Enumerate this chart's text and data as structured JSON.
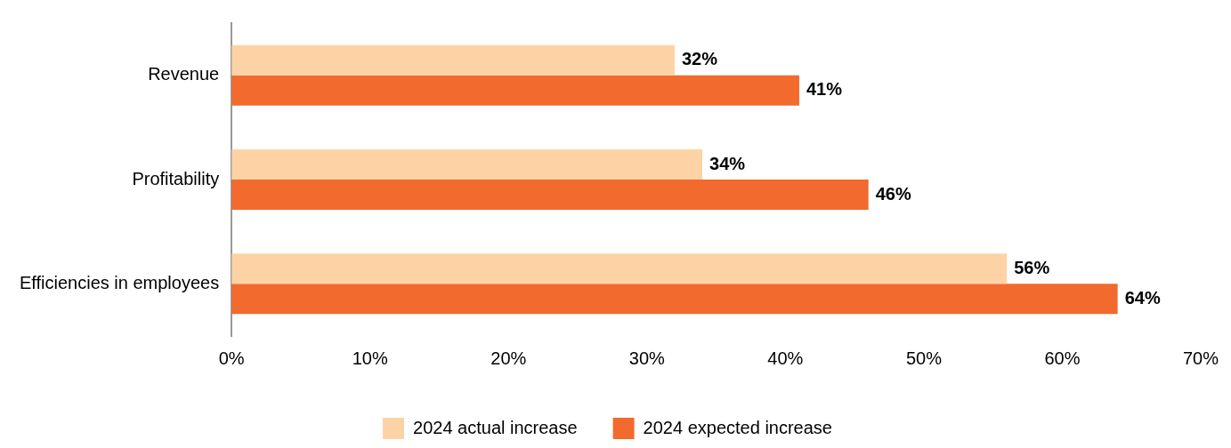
{
  "chart_data": {
    "type": "bar",
    "orientation": "horizontal",
    "categories": [
      "Revenue",
      "Profitability",
      "Efficiencies in employees"
    ],
    "series": [
      {
        "name": "2024 actual increase",
        "color": "#fdd3a5",
        "values": [
          32,
          34,
          56
        ],
        "value_labels": [
          "32%",
          "34%",
          "56%"
        ]
      },
      {
        "name": "2024 expected increase",
        "color": "#f26a2d",
        "values": [
          41,
          46,
          64
        ],
        "value_labels": [
          "41%",
          "46%",
          "64%"
        ]
      }
    ],
    "xlim": [
      0,
      70
    ],
    "xticks": [
      {
        "value": 0,
        "label": "0%"
      },
      {
        "value": 10,
        "label": "10%"
      },
      {
        "value": 20,
        "label": "20%"
      },
      {
        "value": 30,
        "label": "30%"
      },
      {
        "value": 40,
        "label": "40%"
      },
      {
        "value": 50,
        "label": "50%"
      },
      {
        "value": 60,
        "label": "60%"
      },
      {
        "value": 70,
        "label": "70%"
      }
    ],
    "grid": false,
    "legend": "bottom"
  }
}
